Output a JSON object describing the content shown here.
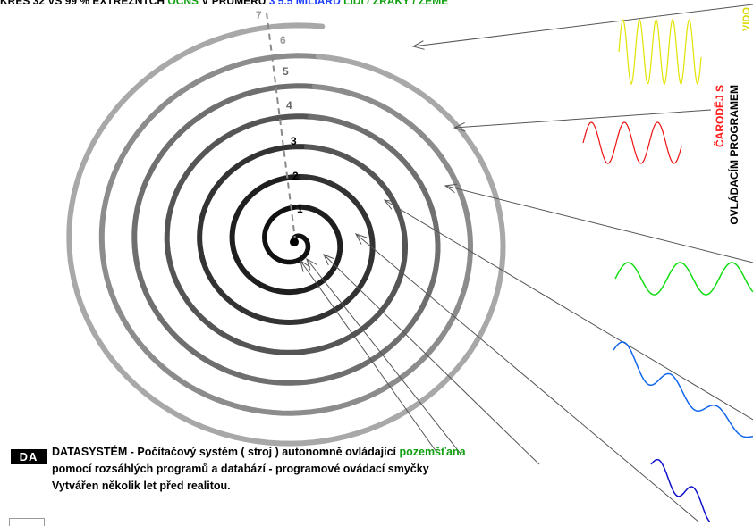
{
  "header": {
    "text_black_1": "KRES 32 VS 99 % EXTRÉZNTCH ",
    "text_green": "OČNS",
    "text_black_2": " V PRŮMĚRU ",
    "text_blue": "3 5.5 MILIARD",
    "text_black_3": " ",
    "text_green_2": "LIDÍ / ZRAKY / ZEMĚ"
  },
  "turn_labels": [
    "1",
    "2",
    "3",
    "4",
    "5",
    "6",
    "7"
  ],
  "side_labels": {
    "red": "ČARODĚJ S",
    "black": "OVLÁDACÍM PROGRAMEM",
    "video": "VIDO"
  },
  "legend": {
    "badge": "DA",
    "line1_a": "DATASYSTÉM - Počítačový systém ( stroj ) autonomně ovládající ",
    "line1_b": "pozemšťana",
    "line2": "pomocí rozsáhlých programů a databází - programové ovádací smyčky",
    "line3": "Vytvářen několik let před realitou."
  },
  "colors": {
    "wave_yellow": "#e3e300",
    "wave_red": "#ee1111",
    "wave_green": "#11dd11",
    "wave_blue": "#1166ee",
    "wave_darkblue": "#1111cc"
  }
}
